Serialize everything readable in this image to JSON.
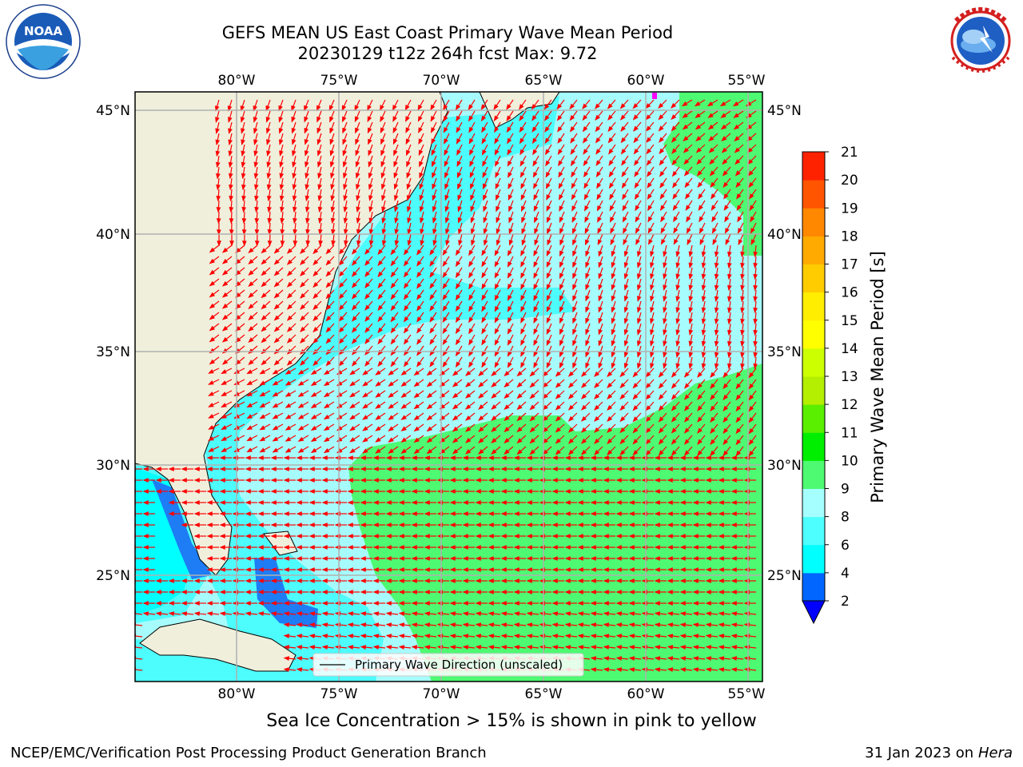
{
  "title": {
    "line1": "GEFS MEAN US East Coast Primary Wave Mean Period",
    "line2": "20230129 t12z 264h fcst   Max: 9.72"
  },
  "logos": {
    "noaa": {
      "text": "NOAA",
      "icon": "noaa-logo-icon"
    },
    "nws": {
      "icon": "nws-logo-icon"
    }
  },
  "map": {
    "lon_ticks": [
      "80°W",
      "75°W",
      "70°W",
      "65°W",
      "60°W",
      "55°W"
    ],
    "lat_ticks": [
      "45°N",
      "40°N",
      "35°N",
      "30°N",
      "25°N"
    ],
    "legend_label": "Primary Wave Direction (unscaled)",
    "colors": {
      "land": "#efefdc",
      "period_2_4": "#1e7cf5",
      "period_4_6": "#00ffff",
      "period_6_8": "#4dfcfc",
      "period_8_9": "#a6fcfc",
      "period_9_10": "#4dfa72",
      "arrow": "#ff0000",
      "grid": "#b0b0b0"
    }
  },
  "colorbar": {
    "label": "Primary Wave Mean Period [s]",
    "ticks": [
      "2",
      "4",
      "6",
      "8",
      "9",
      "10",
      "11",
      "12",
      "13",
      "14",
      "15",
      "16",
      "17",
      "18",
      "19",
      "20",
      "21"
    ],
    "colors": [
      "#0066ff",
      "#00ffff",
      "#4dffff",
      "#a6ffff",
      "#4dfa72",
      "#00ee00",
      "#5aee00",
      "#b4ee00",
      "#ccff00",
      "#ffff00",
      "#ffee00",
      "#ffcc00",
      "#ffaa00",
      "#ff8800",
      "#ff5500",
      "#ff2200",
      "#ff0000"
    ],
    "under_color": "#0000ff"
  },
  "note": "Sea Ice Concentration > 15% is shown in pink to yellow",
  "footer": {
    "left": "NCEP/EMC/Verification Post Processing Product Generation Branch",
    "right_date": "31 Jan 2023 on ",
    "right_host": "Hera"
  }
}
